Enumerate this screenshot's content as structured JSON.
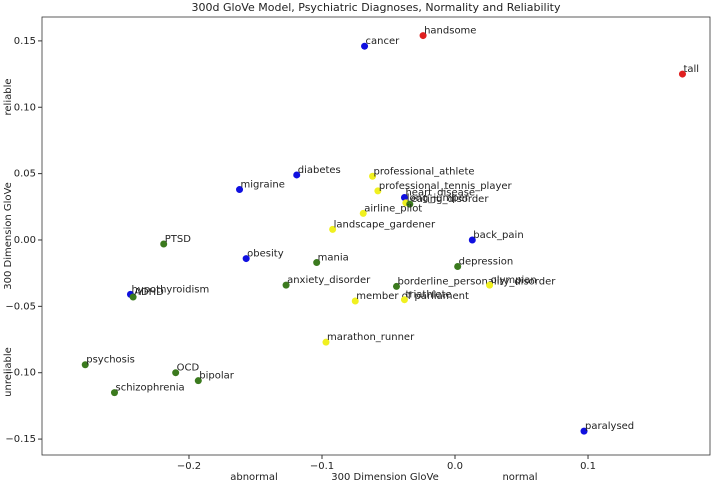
{
  "chart_data": {
    "type": "scatter",
    "title": "300d GloVe Model, Psychiatric Diagnoses, Normality and Reliability",
    "x_label": "300 Dimension GloVe",
    "y_label": "300 Dimension GloVe",
    "x_left_note": "abnormal",
    "x_right_note": "normal",
    "y_top_note": "reliable",
    "y_bottom_note": "unreliable",
    "xlim": [
      -0.3105,
      0.1917
    ],
    "ylim": [
      -0.162,
      0.168
    ],
    "xticks": [
      {
        "value": -0.2,
        "label": "−0.2"
      },
      {
        "value": -0.1,
        "label": "−0.1"
      },
      {
        "value": 0,
        "label": "0.0"
      },
      {
        "value": 0.1,
        "label": "0.1"
      }
    ],
    "yticks": [
      {
        "value": -0.15,
        "label": "−0.15"
      },
      {
        "value": -0.1,
        "label": "−0.10"
      },
      {
        "value": -0.05,
        "label": "−0.05"
      },
      {
        "value": 0,
        "label": "0.00"
      },
      0.05,
      {
        "value": 0.1,
        "label": "0.10"
      },
      0.15
    ],
    "points": [
      {
        "label": "cancer",
        "x": -0.068,
        "y": 0.146,
        "color": "#1010e0"
      },
      {
        "label": "handsome",
        "x": -0.024,
        "y": 0.154,
        "color": "#e02020"
      },
      {
        "label": "tall",
        "x": 0.171,
        "y": 0.125,
        "color": "#e02020"
      },
      {
        "label": "diabetes",
        "x": -0.119,
        "y": 0.049,
        "color": "#1010e0"
      },
      {
        "label": "migraine",
        "x": -0.162,
        "y": 0.038,
        "color": "#1010e0"
      },
      {
        "label": "professional_athlete",
        "x": -0.062,
        "y": 0.048,
        "color": "#f0f020"
      },
      {
        "label": "professional_tennis_player",
        "x": -0.058,
        "y": 0.037,
        "color": "#f0f020"
      },
      {
        "label": "heart_disease",
        "x": -0.038,
        "y": 0.032,
        "color": "#1010e0"
      },
      {
        "label": "long_jumper",
        "x": -0.037,
        "y": 0.028,
        "color": "#f0f020"
      },
      {
        "label": "eating_disorder",
        "x": -0.034,
        "y": 0.027,
        "color": "#3b7a1e"
      },
      {
        "label": "airline_pilot",
        "x": -0.069,
        "y": 0.02,
        "color": "#f0f020"
      },
      {
        "label": "landscape_gardener",
        "x": -0.092,
        "y": 0.008,
        "color": "#f0f020"
      },
      {
        "label": "back_pain",
        "x": 0.013,
        "y": 0.0,
        "color": "#1010e0"
      },
      {
        "label": "PTSD",
        "x": -0.219,
        "y": -0.003,
        "color": "#3b7a1e"
      },
      {
        "label": "obesity",
        "x": -0.157,
        "y": -0.014,
        "color": "#1010e0"
      },
      {
        "label": "mania",
        "x": -0.104,
        "y": -0.017,
        "color": "#3b7a1e"
      },
      {
        "label": "depression",
        "x": 0.002,
        "y": -0.02,
        "color": "#3b7a1e"
      },
      {
        "label": "anxiety_disorder",
        "x": -0.127,
        "y": -0.034,
        "color": "#3b7a1e"
      },
      {
        "label": "borderline_personality_disorder",
        "x": -0.044,
        "y": -0.035,
        "color": "#3b7a1e"
      },
      {
        "label": "olympian",
        "x": 0.026,
        "y": -0.034,
        "color": "#f0f020"
      },
      {
        "label": "member of parliament",
        "x": -0.075,
        "y": -0.046,
        "color": "#f0f020"
      },
      {
        "label": "triathlete",
        "x": -0.038,
        "y": -0.045,
        "color": "#f0f020"
      },
      {
        "label": "hypothyroidism",
        "x": -0.244,
        "y": -0.041,
        "color": "#1010e0"
      },
      {
        "label": "ADHD",
        "x": -0.242,
        "y": -0.043,
        "color": "#3b7a1e"
      },
      {
        "label": "marathon_runner",
        "x": -0.097,
        "y": -0.077,
        "color": "#f0f020"
      },
      {
        "label": "psychosis",
        "x": -0.278,
        "y": -0.094,
        "color": "#3b7a1e"
      },
      {
        "label": "OCD",
        "x": -0.21,
        "y": -0.1,
        "color": "#3b7a1e"
      },
      {
        "label": "bipolar",
        "x": -0.193,
        "y": -0.106,
        "color": "#3b7a1e"
      },
      {
        "label": "schizophrenia",
        "x": -0.256,
        "y": -0.115,
        "color": "#3b7a1e"
      },
      {
        "label": "paralysed",
        "x": 0.097,
        "y": -0.144,
        "color": "#1010e0"
      }
    ]
  }
}
